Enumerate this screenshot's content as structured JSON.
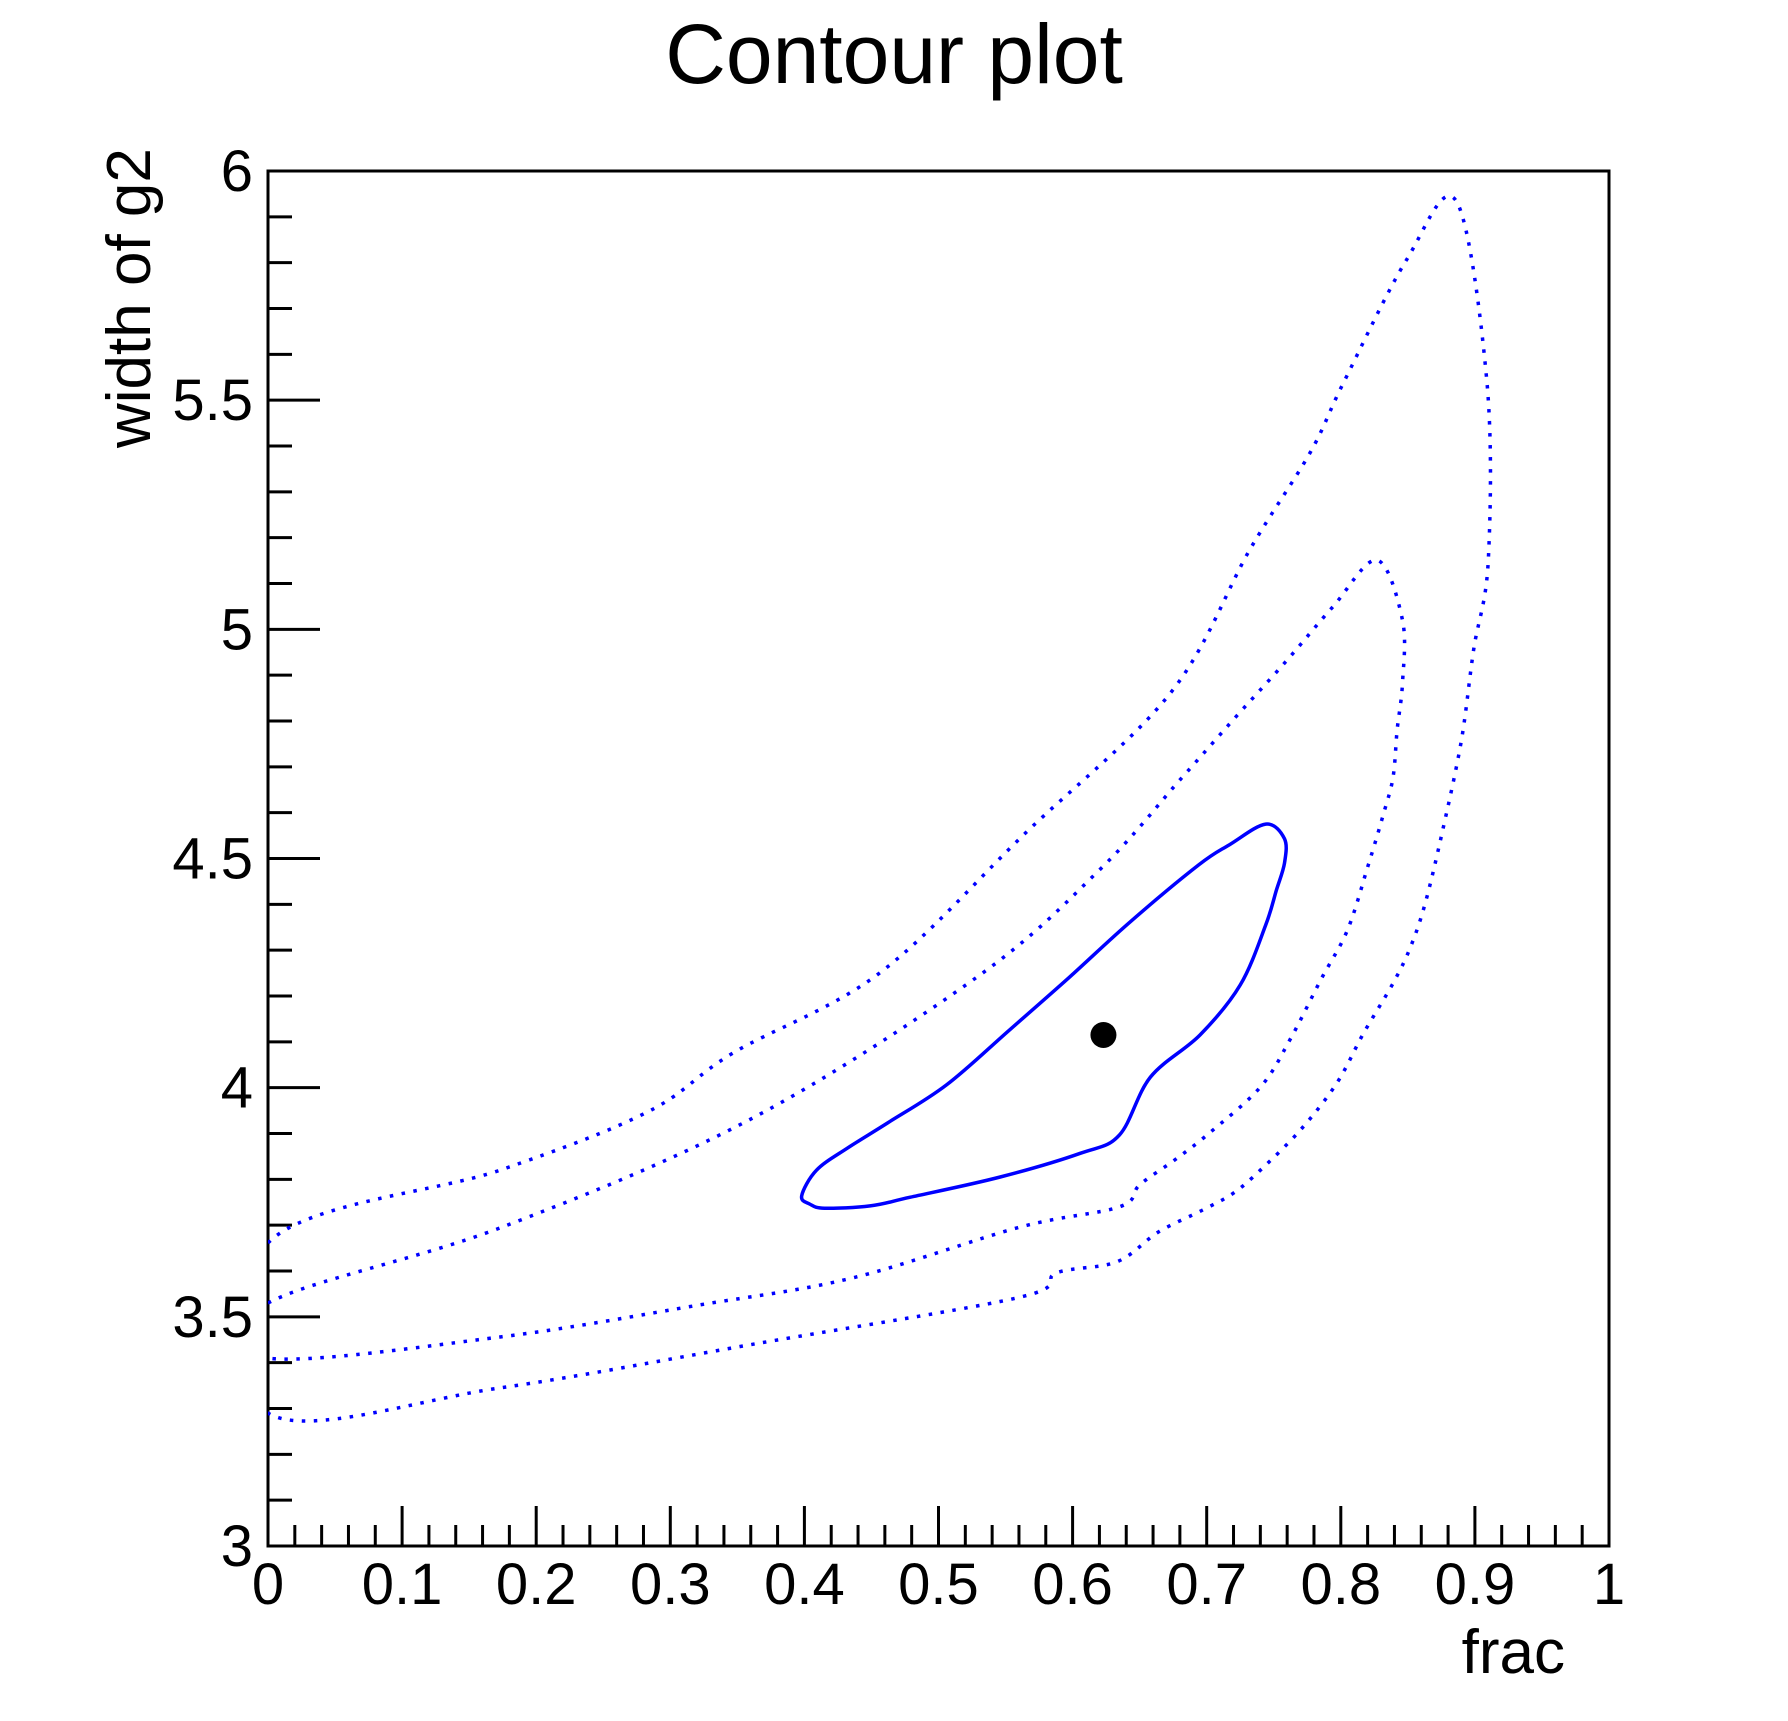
{
  "chart_data": {
    "type": "line",
    "subtype": "contour",
    "title": "Contour plot",
    "xlabel": "frac",
    "ylabel": "width of g2",
    "xlim": [
      0,
      1
    ],
    "ylim": [
      3,
      6
    ],
    "grid": false,
    "x_ticks": [
      {
        "v": 0.0,
        "label": "0"
      },
      {
        "v": 0.1,
        "label": "0.1"
      },
      {
        "v": 0.2,
        "label": "0.2"
      },
      {
        "v": 0.3,
        "label": "0.3"
      },
      {
        "v": 0.4,
        "label": "0.4"
      },
      {
        "v": 0.5,
        "label": "0.5"
      },
      {
        "v": 0.6,
        "label": "0.6"
      },
      {
        "v": 0.7,
        "label": "0.7"
      },
      {
        "v": 0.8,
        "label": "0.8"
      },
      {
        "v": 0.9,
        "label": "0.9"
      },
      {
        "v": 1.0,
        "label": "1"
      }
    ],
    "y_ticks": [
      {
        "v": 3.0,
        "label": "3"
      },
      {
        "v": 3.5,
        "label": "3.5"
      },
      {
        "v": 4.0,
        "label": "4"
      },
      {
        "v": 4.5,
        "label": "4.5"
      },
      {
        "v": 5.0,
        "label": "5"
      },
      {
        "v": 5.5,
        "label": "5.5"
      },
      {
        "v": 6.0,
        "label": "6"
      }
    ],
    "x_minor_per_major": 5,
    "y_minor_per_major": 5,
    "colors": {
      "contour": "#0000ff",
      "marker": "#000000",
      "axis": "#000000",
      "background": "#ffffff"
    },
    "best_fit_point": {
      "x": 0.623,
      "y": 4.115
    },
    "series": [
      {
        "name": "contour-1sigma",
        "style": "solid",
        "closed": true,
        "points": [
          [
            0.398,
            3.764
          ],
          [
            0.404,
            3.746
          ],
          [
            0.415,
            3.737
          ],
          [
            0.449,
            3.742
          ],
          [
            0.479,
            3.761
          ],
          [
            0.546,
            3.805
          ],
          [
            0.606,
            3.857
          ],
          [
            0.635,
            3.897
          ],
          [
            0.658,
            4.023
          ],
          [
            0.695,
            4.115
          ],
          [
            0.725,
            4.224
          ],
          [
            0.744,
            4.355
          ],
          [
            0.752,
            4.431
          ],
          [
            0.758,
            4.49
          ],
          [
            0.758,
            4.543
          ],
          [
            0.744,
            4.575
          ],
          [
            0.717,
            4.53
          ],
          [
            0.694,
            4.486
          ],
          [
            0.643,
            4.362
          ],
          [
            0.598,
            4.242
          ],
          [
            0.553,
            4.126
          ],
          [
            0.506,
            4.006
          ],
          [
            0.462,
            3.923
          ],
          [
            0.432,
            3.868
          ],
          [
            0.409,
            3.82
          ]
        ]
      },
      {
        "name": "contour-2sigma",
        "style": "dotted",
        "closed": true,
        "points": [
          [
            0.0,
            3.53
          ],
          [
            0.173,
            3.694
          ],
          [
            0.359,
            3.93
          ],
          [
            0.529,
            4.242
          ],
          [
            0.62,
            4.475
          ],
          [
            0.682,
            4.678
          ],
          [
            0.723,
            4.813
          ],
          [
            0.76,
            4.933
          ],
          [
            0.794,
            5.049
          ],
          [
            0.827,
            5.151
          ],
          [
            0.846,
            5.02
          ],
          [
            0.846,
            4.883
          ],
          [
            0.842,
            4.78
          ],
          [
            0.839,
            4.678
          ],
          [
            0.832,
            4.599
          ],
          [
            0.82,
            4.481
          ],
          [
            0.805,
            4.344
          ],
          [
            0.785,
            4.235
          ],
          [
            0.762,
            4.104
          ],
          [
            0.74,
            4.001
          ],
          [
            0.702,
            3.901
          ],
          [
            0.676,
            3.842
          ],
          [
            0.65,
            3.788
          ],
          [
            0.635,
            3.74
          ],
          [
            0.561,
            3.696
          ],
          [
            0.436,
            3.585
          ],
          [
            0.322,
            3.526
          ],
          [
            0.173,
            3.456
          ],
          [
            0.0,
            3.41
          ]
        ]
      },
      {
        "name": "contour-3sigma",
        "style": "dotted",
        "closed": true,
        "points": [
          [
            0.0,
            3.661
          ],
          [
            0.173,
            3.82
          ],
          [
            0.283,
            3.947
          ],
          [
            0.347,
            4.076
          ],
          [
            0.456,
            4.25
          ],
          [
            0.565,
            4.556
          ],
          [
            0.673,
            4.861
          ],
          [
            0.732,
            5.173
          ],
          [
            0.777,
            5.385
          ],
          [
            0.802,
            5.538
          ],
          [
            0.849,
            5.806
          ],
          [
            0.886,
            5.935
          ],
          [
            0.909,
            5.538
          ],
          [
            0.91,
            5.151
          ],
          [
            0.899,
            4.955
          ],
          [
            0.89,
            4.759
          ],
          [
            0.876,
            4.562
          ],
          [
            0.863,
            4.403
          ],
          [
            0.852,
            4.307
          ],
          [
            0.839,
            4.228
          ],
          [
            0.817,
            4.119
          ],
          [
            0.797,
            4.01
          ],
          [
            0.77,
            3.908
          ],
          [
            0.74,
            3.82
          ],
          [
            0.72,
            3.77
          ],
          [
            0.697,
            3.733
          ],
          [
            0.664,
            3.685
          ],
          [
            0.633,
            3.62
          ],
          [
            0.588,
            3.596
          ],
          [
            0.561,
            3.543
          ],
          [
            0.367,
            3.443
          ],
          [
            0.173,
            3.345
          ],
          [
            0.0,
            3.29
          ]
        ]
      }
    ]
  }
}
